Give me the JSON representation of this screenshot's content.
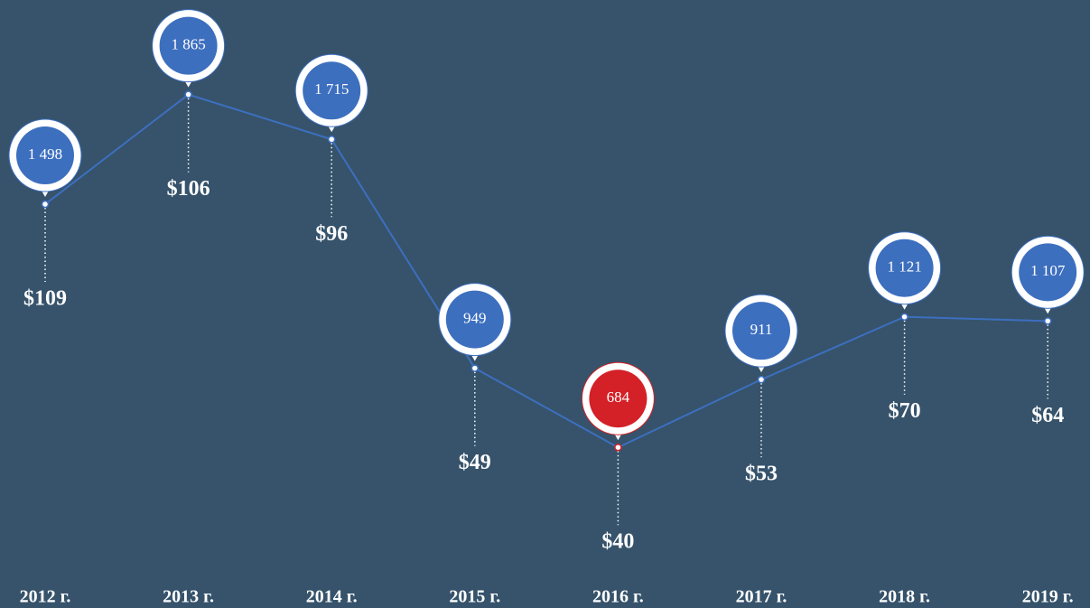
{
  "chart_data": {
    "type": "line",
    "categories": [
      "2012 г.",
      "2013 г.",
      "2014 г.",
      "2015 г.",
      "2016 г.",
      "2017 г.",
      "2018 г.",
      "2019 г."
    ],
    "values": [
      1498,
      1865,
      1715,
      949,
      684,
      911,
      1121,
      1107
    ],
    "value_labels": [
      "1 498",
      "1 865",
      "1 715",
      "949",
      "684",
      "911",
      "1 121",
      "1 107"
    ],
    "annotations": [
      "$109",
      "$106",
      "$96",
      "$49",
      "$40",
      "$53",
      "$70",
      "$64"
    ],
    "color": "#3d6fbf",
    "point_colors": [
      "#3d6fbf",
      "#3d6fbf",
      "#3d6fbf",
      "#3d6fbf",
      "#d42027",
      "#3d6fbf",
      "#3d6fbf",
      "#3d6fbf"
    ],
    "ylim": [
      600,
      2000
    ]
  }
}
